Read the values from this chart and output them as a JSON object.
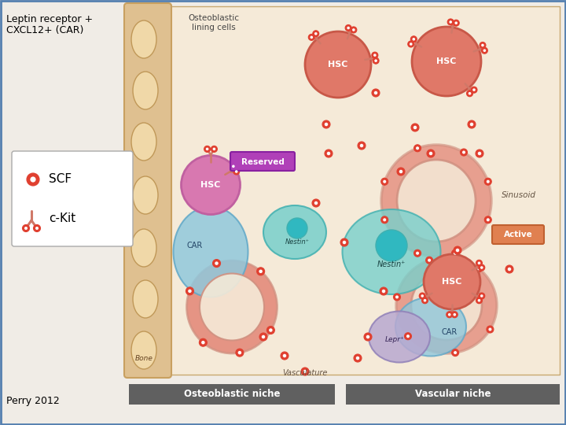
{
  "title_line1": "Leptin receptor +",
  "title_line2": "CXCL12+ (CAR)",
  "perry_text": "Perry 2012",
  "bg_color": "#f0ece6",
  "main_bg": "#f5ead8",
  "border_color": "#5580b0",
  "bone_color": "#dfc090",
  "bone_border": "#c8a060",
  "bone_lacuna_color": "#f0d8a8",
  "sinusoid_label": "Sinusoid",
  "osteoblast_label": "Osteoblastic\nlining cells",
  "bone_label": "Bone",
  "vasculature_label": "Vasculature",
  "reserved_label": "Reserved",
  "active_label": "Active",
  "car_label": "CAR",
  "hsc_label": "HSC",
  "nestin_label": "Nestin+",
  "lepr_label": "Lepr+",
  "scf_label": "SCF",
  "ckit_label": "c-Kit",
  "osteoblastic_niche": "Osteoblastic niche",
  "vascular_niche": "Vascular niche",
  "niche_bar_color": "#606060",
  "niche_text_color": "#ffffff",
  "hsc_salmon": "#e07868",
  "hsc_dark": "#c85848",
  "hsc_inner_bg": "#d4907880",
  "pink_cell": "#d878b0",
  "pink_cell_edge": "#c060a0",
  "car_blue": "#90c8dc",
  "car_blue_edge": "#60a8c8",
  "sinusoid_vessel_color": "#d09080",
  "sinusoid_vessel_inner": "#e8c0b0",
  "nestin_teal": "#78d0cc",
  "nestin_teal_edge": "#40b0b0",
  "nestin_inner": "#30b8c0",
  "lepr_lavender": "#b8a8d0",
  "lepr_lavender_edge": "#9080b8",
  "scf_dot_color": "#e04030",
  "scf_dot_inner": "#ffffff",
  "reserved_bg": "#b040b8",
  "reserved_edge": "#8820a0",
  "active_bg": "#e08050",
  "active_edge": "#c06030",
  "legend_box": "#ffffff",
  "ckit_color": "#d07868"
}
